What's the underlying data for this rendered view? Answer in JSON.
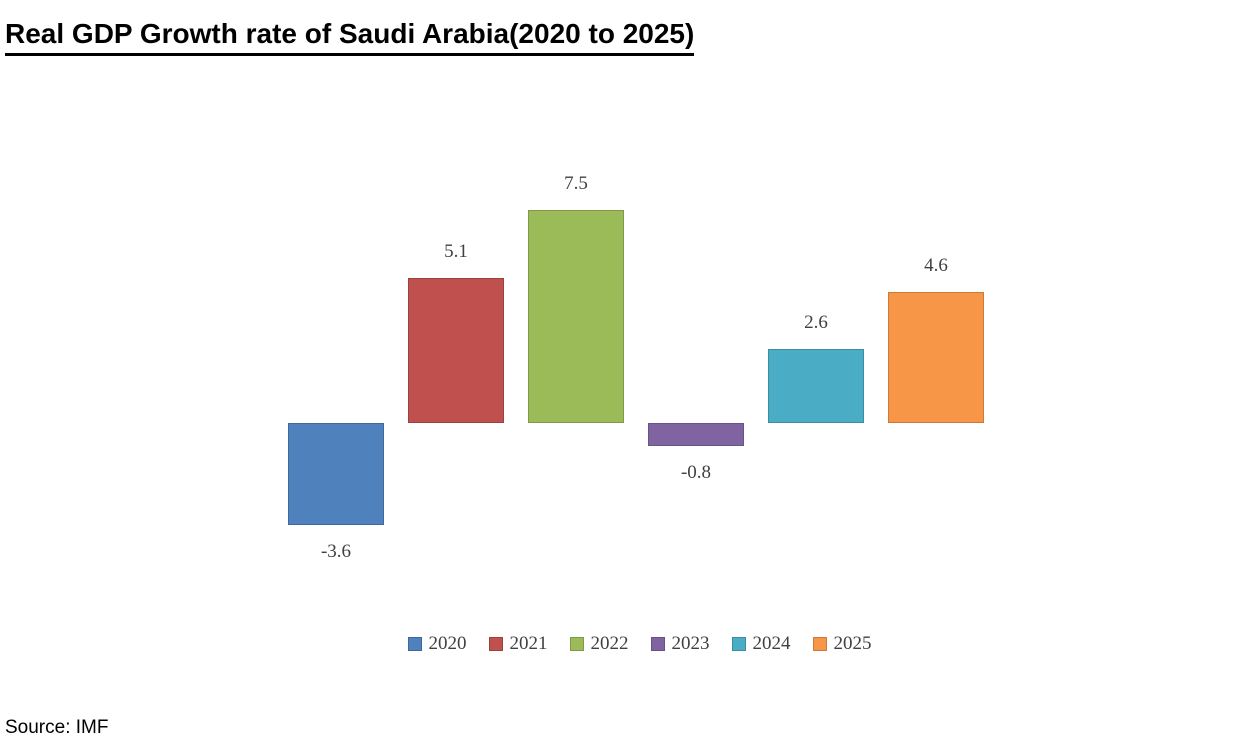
{
  "title": "Real GDP Growth rate of Saudi Arabia(2020 to 2025)",
  "source": "Source: IMF",
  "colors": {
    "title_text": "#000000",
    "label_text": "#404040",
    "background": "#ffffff"
  },
  "chart_data": {
    "type": "bar",
    "title": "Real GDP Growth rate of Saudi Arabia(2020 to 2025)",
    "categories": [
      "2020",
      "2021",
      "2022",
      "2023",
      "2024",
      "2025"
    ],
    "values": [
      -3.6,
      5.1,
      7.5,
      -0.8,
      2.6,
      4.6
    ],
    "data_labels": [
      "-3.6",
      "5.1",
      "7.5",
      "-0.8",
      "2.6",
      "4.6"
    ],
    "series_colors": [
      "#4F81BD",
      "#C0504D",
      "#9BBB59",
      "#8064A2",
      "#4BACC6",
      "#F79646"
    ],
    "xlabel": "",
    "ylabel": "",
    "ylim": [
      -4.5,
      8.5
    ],
    "grid": false,
    "axis_lines": false,
    "legend_position": "bottom",
    "source_note": "Source: IMF"
  }
}
